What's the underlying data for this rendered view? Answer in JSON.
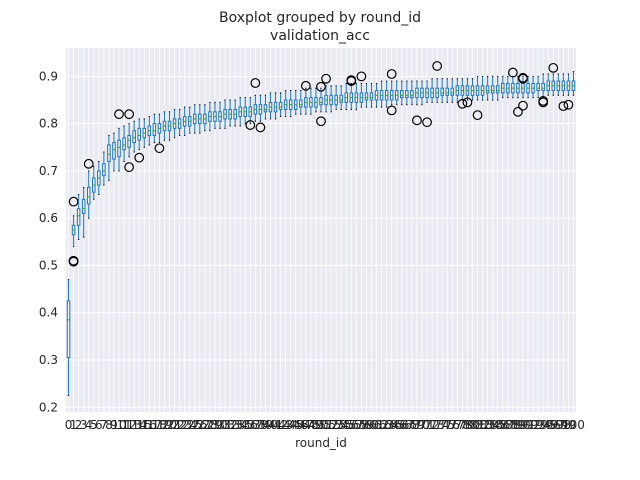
{
  "figure": {
    "title": "Boxplot grouped by round_id",
    "subtitle": "validation_acc"
  },
  "colors": {
    "plot_bg": "#eaeaf2",
    "grid": "#ffffff",
    "box": "#1f77b4",
    "median": "#2ca02c",
    "flier": "#000000",
    "whisker_cap": "#000000"
  },
  "chart_data": {
    "type": "boxplot",
    "title": "Boxplot grouped by round_id",
    "subtitle": "validation_acc",
    "xlabel": "round_id",
    "ylabel": "",
    "ylim": [
      0.19,
      0.96
    ],
    "yticks": [
      0.2,
      0.3,
      0.4,
      0.5,
      0.6,
      0.7,
      0.8,
      0.9
    ],
    "grid": true,
    "categories": [
      "0",
      "1",
      "2",
      "3",
      "4",
      "5",
      "6",
      "7",
      "8",
      "9",
      "10",
      "11",
      "12",
      "13",
      "14",
      "15",
      "16",
      "17",
      "18",
      "19",
      "20",
      "21",
      "22",
      "23",
      "24",
      "25",
      "26",
      "27",
      "28",
      "29",
      "30",
      "31",
      "32",
      "33",
      "34",
      "35",
      "36",
      "37",
      "38",
      "39",
      "40",
      "41",
      "42",
      "43",
      "44",
      "45",
      "46",
      "47",
      "48",
      "49",
      "50",
      "51",
      "52",
      "53",
      "54",
      "55",
      "56",
      "57",
      "58",
      "59",
      "60",
      "61",
      "62",
      "63",
      "64",
      "65",
      "66",
      "67",
      "68",
      "69",
      "70",
      "71",
      "72",
      "73",
      "74",
      "75",
      "76",
      "77",
      "78",
      "79",
      "80",
      "81",
      "82",
      "83",
      "84",
      "85",
      "86",
      "87",
      "88",
      "89",
      "90",
      "91",
      "92",
      "93",
      "94",
      "95",
      "96",
      "97",
      "98",
      "99",
      "100"
    ],
    "boxes": [
      {
        "x": "0",
        "wlo": 0.225,
        "q1": 0.305,
        "med": 0.385,
        "q3": 0.425,
        "whi": 0.47,
        "fliers": []
      },
      {
        "x": "1",
        "wlo": 0.54,
        "q1": 0.565,
        "med": 0.575,
        "q3": 0.585,
        "whi": 0.605,
        "fliers": [
          0.508,
          0.51,
          0.635
        ]
      },
      {
        "x": "2",
        "wlo": 0.555,
        "q1": 0.585,
        "med": 0.605,
        "q3": 0.62,
        "whi": 0.65,
        "fliers": []
      },
      {
        "x": "3",
        "wlo": 0.56,
        "q1": 0.61,
        "med": 0.62,
        "q3": 0.64,
        "whi": 0.665,
        "fliers": []
      },
      {
        "x": "4",
        "wlo": 0.6,
        "q1": 0.63,
        "med": 0.645,
        "q3": 0.665,
        "whi": 0.7,
        "fliers": [
          0.715
        ]
      },
      {
        "x": "5",
        "wlo": 0.64,
        "q1": 0.655,
        "med": 0.67,
        "q3": 0.685,
        "whi": 0.71,
        "fliers": []
      },
      {
        "x": "6",
        "wlo": 0.65,
        "q1": 0.67,
        "med": 0.685,
        "q3": 0.7,
        "whi": 0.72,
        "fliers": []
      },
      {
        "x": "7",
        "wlo": 0.67,
        "q1": 0.69,
        "med": 0.7,
        "q3": 0.715,
        "whi": 0.74,
        "fliers": []
      },
      {
        "x": "8",
        "wlo": 0.68,
        "q1": 0.72,
        "med": 0.735,
        "q3": 0.755,
        "whi": 0.775,
        "fliers": []
      },
      {
        "x": "9",
        "wlo": 0.7,
        "q1": 0.725,
        "med": 0.745,
        "q3": 0.76,
        "whi": 0.78,
        "fliers": []
      },
      {
        "x": "10",
        "wlo": 0.7,
        "q1": 0.73,
        "med": 0.75,
        "q3": 0.765,
        "whi": 0.79,
        "fliers": [
          0.82
        ]
      },
      {
        "x": "11",
        "wlo": 0.72,
        "q1": 0.745,
        "med": 0.755,
        "q3": 0.77,
        "whi": 0.795,
        "fliers": []
      },
      {
        "x": "12",
        "wlo": 0.73,
        "q1": 0.75,
        "med": 0.765,
        "q3": 0.775,
        "whi": 0.8,
        "fliers": [
          0.708,
          0.82
        ]
      },
      {
        "x": "13",
        "wlo": 0.74,
        "q1": 0.76,
        "med": 0.77,
        "q3": 0.785,
        "whi": 0.805,
        "fliers": []
      },
      {
        "x": "14",
        "wlo": 0.745,
        "q1": 0.765,
        "med": 0.775,
        "q3": 0.79,
        "whi": 0.81,
        "fliers": [
          0.728
        ]
      },
      {
        "x": "15",
        "wlo": 0.75,
        "q1": 0.77,
        "med": 0.78,
        "q3": 0.79,
        "whi": 0.81,
        "fliers": []
      },
      {
        "x": "16",
        "wlo": 0.755,
        "q1": 0.775,
        "med": 0.785,
        "q3": 0.795,
        "whi": 0.815,
        "fliers": []
      },
      {
        "x": "17",
        "wlo": 0.76,
        "q1": 0.775,
        "med": 0.785,
        "q3": 0.8,
        "whi": 0.82,
        "fliers": []
      },
      {
        "x": "18",
        "wlo": 0.76,
        "q1": 0.78,
        "med": 0.79,
        "q3": 0.8,
        "whi": 0.82,
        "fliers": [
          0.748
        ]
      },
      {
        "x": "19",
        "wlo": 0.765,
        "q1": 0.785,
        "med": 0.795,
        "q3": 0.805,
        "whi": 0.825,
        "fliers": []
      },
      {
        "x": "20",
        "wlo": 0.765,
        "q1": 0.785,
        "med": 0.795,
        "q3": 0.805,
        "whi": 0.825,
        "fliers": []
      },
      {
        "x": "21",
        "wlo": 0.77,
        "q1": 0.79,
        "med": 0.8,
        "q3": 0.81,
        "whi": 0.83,
        "fliers": []
      },
      {
        "x": "22",
        "wlo": 0.775,
        "q1": 0.79,
        "med": 0.8,
        "q3": 0.81,
        "whi": 0.83,
        "fliers": []
      },
      {
        "x": "23",
        "wlo": 0.775,
        "q1": 0.795,
        "med": 0.805,
        "q3": 0.815,
        "whi": 0.835,
        "fliers": []
      },
      {
        "x": "24",
        "wlo": 0.78,
        "q1": 0.795,
        "med": 0.805,
        "q3": 0.815,
        "whi": 0.835,
        "fliers": []
      },
      {
        "x": "25",
        "wlo": 0.78,
        "q1": 0.8,
        "med": 0.81,
        "q3": 0.82,
        "whi": 0.84,
        "fliers": []
      },
      {
        "x": "26",
        "wlo": 0.78,
        "q1": 0.8,
        "med": 0.81,
        "q3": 0.82,
        "whi": 0.84,
        "fliers": []
      },
      {
        "x": "27",
        "wlo": 0.785,
        "q1": 0.8,
        "med": 0.81,
        "q3": 0.82,
        "whi": 0.84,
        "fliers": []
      },
      {
        "x": "28",
        "wlo": 0.785,
        "q1": 0.805,
        "med": 0.815,
        "q3": 0.825,
        "whi": 0.845,
        "fliers": []
      },
      {
        "x": "29",
        "wlo": 0.79,
        "q1": 0.805,
        "med": 0.815,
        "q3": 0.825,
        "whi": 0.845,
        "fliers": []
      },
      {
        "x": "30",
        "wlo": 0.79,
        "q1": 0.805,
        "med": 0.815,
        "q3": 0.825,
        "whi": 0.845,
        "fliers": []
      },
      {
        "x": "31",
        "wlo": 0.79,
        "q1": 0.81,
        "med": 0.82,
        "q3": 0.83,
        "whi": 0.85,
        "fliers": []
      },
      {
        "x": "32",
        "wlo": 0.795,
        "q1": 0.81,
        "med": 0.82,
        "q3": 0.83,
        "whi": 0.85,
        "fliers": []
      },
      {
        "x": "33",
        "wlo": 0.795,
        "q1": 0.81,
        "med": 0.82,
        "q3": 0.83,
        "whi": 0.85,
        "fliers": []
      },
      {
        "x": "34",
        "wlo": 0.795,
        "q1": 0.815,
        "med": 0.825,
        "q3": 0.835,
        "whi": 0.855,
        "fliers": []
      },
      {
        "x": "35",
        "wlo": 0.8,
        "q1": 0.815,
        "med": 0.825,
        "q3": 0.835,
        "whi": 0.855,
        "fliers": []
      },
      {
        "x": "36",
        "wlo": 0.8,
        "q1": 0.815,
        "med": 0.825,
        "q3": 0.835,
        "whi": 0.855,
        "fliers": [
          0.797
        ]
      },
      {
        "x": "37",
        "wlo": 0.805,
        "q1": 0.82,
        "med": 0.83,
        "q3": 0.84,
        "whi": 0.86,
        "fliers": [
          0.886
        ]
      },
      {
        "x": "38",
        "wlo": 0.805,
        "q1": 0.82,
        "med": 0.83,
        "q3": 0.84,
        "whi": 0.86,
        "fliers": [
          0.792
        ]
      },
      {
        "x": "39",
        "wlo": 0.81,
        "q1": 0.825,
        "med": 0.83,
        "q3": 0.84,
        "whi": 0.86,
        "fliers": []
      },
      {
        "x": "40",
        "wlo": 0.81,
        "q1": 0.825,
        "med": 0.835,
        "q3": 0.845,
        "whi": 0.865,
        "fliers": []
      },
      {
        "x": "41",
        "wlo": 0.81,
        "q1": 0.825,
        "med": 0.835,
        "q3": 0.845,
        "whi": 0.865,
        "fliers": []
      },
      {
        "x": "42",
        "wlo": 0.815,
        "q1": 0.83,
        "med": 0.835,
        "q3": 0.845,
        "whi": 0.865,
        "fliers": []
      },
      {
        "x": "43",
        "wlo": 0.815,
        "q1": 0.83,
        "med": 0.84,
        "q3": 0.85,
        "whi": 0.87,
        "fliers": []
      },
      {
        "x": "44",
        "wlo": 0.815,
        "q1": 0.83,
        "med": 0.84,
        "q3": 0.85,
        "whi": 0.87,
        "fliers": []
      },
      {
        "x": "45",
        "wlo": 0.82,
        "q1": 0.83,
        "med": 0.84,
        "q3": 0.85,
        "whi": 0.87,
        "fliers": []
      },
      {
        "x": "46",
        "wlo": 0.82,
        "q1": 0.835,
        "med": 0.84,
        "q3": 0.85,
        "whi": 0.87,
        "fliers": []
      },
      {
        "x": "47",
        "wlo": 0.82,
        "q1": 0.835,
        "med": 0.845,
        "q3": 0.855,
        "whi": 0.875,
        "fliers": [
          0.88
        ]
      },
      {
        "x": "48",
        "wlo": 0.82,
        "q1": 0.835,
        "med": 0.845,
        "q3": 0.855,
        "whi": 0.875,
        "fliers": []
      },
      {
        "x": "49",
        "wlo": 0.825,
        "q1": 0.835,
        "med": 0.845,
        "q3": 0.855,
        "whi": 0.875,
        "fliers": []
      },
      {
        "x": "50",
        "wlo": 0.825,
        "q1": 0.84,
        "med": 0.845,
        "q3": 0.855,
        "whi": 0.875,
        "fliers": [
          0.805,
          0.878
        ]
      },
      {
        "x": "51",
        "wlo": 0.825,
        "q1": 0.84,
        "med": 0.85,
        "q3": 0.86,
        "whi": 0.88,
        "fliers": [
          0.895
        ]
      },
      {
        "x": "52",
        "wlo": 0.825,
        "q1": 0.84,
        "med": 0.85,
        "q3": 0.86,
        "whi": 0.88,
        "fliers": []
      },
      {
        "x": "53",
        "wlo": 0.83,
        "q1": 0.84,
        "med": 0.85,
        "q3": 0.86,
        "whi": 0.88,
        "fliers": []
      },
      {
        "x": "54",
        "wlo": 0.83,
        "q1": 0.845,
        "med": 0.85,
        "q3": 0.86,
        "whi": 0.88,
        "fliers": []
      },
      {
        "x": "55",
        "wlo": 0.83,
        "q1": 0.845,
        "med": 0.855,
        "q3": 0.865,
        "whi": 0.885,
        "fliers": []
      },
      {
        "x": "56",
        "wlo": 0.83,
        "q1": 0.845,
        "med": 0.855,
        "q3": 0.865,
        "whi": 0.885,
        "fliers": [
          0.89,
          0.892
        ]
      },
      {
        "x": "57",
        "wlo": 0.83,
        "q1": 0.845,
        "med": 0.855,
        "q3": 0.865,
        "whi": 0.885,
        "fliers": []
      },
      {
        "x": "58",
        "wlo": 0.835,
        "q1": 0.845,
        "med": 0.855,
        "q3": 0.865,
        "whi": 0.885,
        "fliers": [
          0.9
        ]
      },
      {
        "x": "59",
        "wlo": 0.835,
        "q1": 0.85,
        "med": 0.855,
        "q3": 0.865,
        "whi": 0.885,
        "fliers": []
      },
      {
        "x": "60",
        "wlo": 0.835,
        "q1": 0.85,
        "med": 0.855,
        "q3": 0.865,
        "whi": 0.885,
        "fliers": []
      },
      {
        "x": "61",
        "wlo": 0.835,
        "q1": 0.85,
        "med": 0.86,
        "q3": 0.87,
        "whi": 0.885,
        "fliers": []
      },
      {
        "x": "62",
        "wlo": 0.835,
        "q1": 0.85,
        "med": 0.86,
        "q3": 0.87,
        "whi": 0.89,
        "fliers": []
      },
      {
        "x": "63",
        "wlo": 0.835,
        "q1": 0.85,
        "med": 0.86,
        "q3": 0.87,
        "whi": 0.89,
        "fliers": []
      },
      {
        "x": "64",
        "wlo": 0.84,
        "q1": 0.85,
        "med": 0.86,
        "q3": 0.87,
        "whi": 0.89,
        "fliers": [
          0.905,
          0.828
        ]
      },
      {
        "x": "65",
        "wlo": 0.84,
        "q1": 0.85,
        "med": 0.86,
        "q3": 0.87,
        "whi": 0.89,
        "fliers": []
      },
      {
        "x": "66",
        "wlo": 0.84,
        "q1": 0.855,
        "med": 0.86,
        "q3": 0.87,
        "whi": 0.89,
        "fliers": []
      },
      {
        "x": "67",
        "wlo": 0.84,
        "q1": 0.855,
        "med": 0.86,
        "q3": 0.87,
        "whi": 0.89,
        "fliers": []
      },
      {
        "x": "68",
        "wlo": 0.84,
        "q1": 0.855,
        "med": 0.86,
        "q3": 0.87,
        "whi": 0.89,
        "fliers": []
      },
      {
        "x": "69",
        "wlo": 0.84,
        "q1": 0.855,
        "med": 0.865,
        "q3": 0.875,
        "whi": 0.89,
        "fliers": [
          0.807
        ]
      },
      {
        "x": "70",
        "wlo": 0.84,
        "q1": 0.855,
        "med": 0.865,
        "q3": 0.875,
        "whi": 0.89,
        "fliers": []
      },
      {
        "x": "71",
        "wlo": 0.845,
        "q1": 0.855,
        "med": 0.865,
        "q3": 0.875,
        "whi": 0.89,
        "fliers": [
          0.803
        ]
      },
      {
        "x": "72",
        "wlo": 0.845,
        "q1": 0.855,
        "med": 0.865,
        "q3": 0.875,
        "whi": 0.895,
        "fliers": []
      },
      {
        "x": "73",
        "wlo": 0.845,
        "q1": 0.855,
        "med": 0.865,
        "q3": 0.875,
        "whi": 0.895,
        "fliers": [
          0.922
        ]
      },
      {
        "x": "74",
        "wlo": 0.845,
        "q1": 0.86,
        "med": 0.865,
        "q3": 0.875,
        "whi": 0.895,
        "fliers": []
      },
      {
        "x": "75",
        "wlo": 0.845,
        "q1": 0.86,
        "med": 0.865,
        "q3": 0.875,
        "whi": 0.895,
        "fliers": []
      },
      {
        "x": "76",
        "wlo": 0.845,
        "q1": 0.86,
        "med": 0.865,
        "q3": 0.875,
        "whi": 0.895,
        "fliers": []
      },
      {
        "x": "77",
        "wlo": 0.845,
        "q1": 0.86,
        "med": 0.87,
        "q3": 0.88,
        "whi": 0.895,
        "fliers": []
      },
      {
        "x": "78",
        "wlo": 0.85,
        "q1": 0.86,
        "med": 0.87,
        "q3": 0.88,
        "whi": 0.895,
        "fliers": [
          0.842
        ]
      },
      {
        "x": "79",
        "wlo": 0.85,
        "q1": 0.86,
        "med": 0.87,
        "q3": 0.88,
        "whi": 0.895,
        "fliers": [
          0.845
        ]
      },
      {
        "x": "80",
        "wlo": 0.85,
        "q1": 0.86,
        "med": 0.87,
        "q3": 0.88,
        "whi": 0.895,
        "fliers": []
      },
      {
        "x": "81",
        "wlo": 0.85,
        "q1": 0.86,
        "med": 0.87,
        "q3": 0.88,
        "whi": 0.9,
        "fliers": [
          0.818
        ]
      },
      {
        "x": "82",
        "wlo": 0.85,
        "q1": 0.86,
        "med": 0.87,
        "q3": 0.88,
        "whi": 0.9,
        "fliers": []
      },
      {
        "x": "83",
        "wlo": 0.85,
        "q1": 0.865,
        "med": 0.87,
        "q3": 0.88,
        "whi": 0.9,
        "fliers": []
      },
      {
        "x": "84",
        "wlo": 0.85,
        "q1": 0.865,
        "med": 0.87,
        "q3": 0.88,
        "whi": 0.9,
        "fliers": []
      },
      {
        "x": "85",
        "wlo": 0.85,
        "q1": 0.865,
        "med": 0.87,
        "q3": 0.88,
        "whi": 0.9,
        "fliers": []
      },
      {
        "x": "86",
        "wlo": 0.855,
        "q1": 0.865,
        "med": 0.875,
        "q3": 0.885,
        "whi": 0.9,
        "fliers": []
      },
      {
        "x": "87",
        "wlo": 0.855,
        "q1": 0.865,
        "med": 0.875,
        "q3": 0.885,
        "whi": 0.9,
        "fliers": []
      },
      {
        "x": "88",
        "wlo": 0.855,
        "q1": 0.865,
        "med": 0.875,
        "q3": 0.885,
        "whi": 0.9,
        "fliers": [
          0.908
        ]
      },
      {
        "x": "89",
        "wlo": 0.855,
        "q1": 0.865,
        "med": 0.875,
        "q3": 0.885,
        "whi": 0.9,
        "fliers": [
          0.825
        ]
      },
      {
        "x": "90",
        "wlo": 0.855,
        "q1": 0.865,
        "med": 0.875,
        "q3": 0.885,
        "whi": 0.9,
        "fliers": [
          0.897,
          0.838,
          0.895
        ]
      },
      {
        "x": "91",
        "wlo": 0.855,
        "q1": 0.865,
        "med": 0.875,
        "q3": 0.885,
        "whi": 0.9,
        "fliers": []
      },
      {
        "x": "92",
        "wlo": 0.855,
        "q1": 0.865,
        "med": 0.875,
        "q3": 0.885,
        "whi": 0.9,
        "fliers": []
      },
      {
        "x": "93",
        "wlo": 0.855,
        "q1": 0.87,
        "med": 0.875,
        "q3": 0.885,
        "whi": 0.9,
        "fliers": []
      },
      {
        "x": "94",
        "wlo": 0.855,
        "q1": 0.87,
        "med": 0.875,
        "q3": 0.885,
        "whi": 0.905,
        "fliers": [
          0.848,
          0.845
        ]
      },
      {
        "x": "95",
        "wlo": 0.86,
        "q1": 0.87,
        "med": 0.88,
        "q3": 0.89,
        "whi": 0.905,
        "fliers": []
      },
      {
        "x": "96",
        "wlo": 0.86,
        "q1": 0.87,
        "med": 0.88,
        "q3": 0.89,
        "whi": 0.905,
        "fliers": [
          0.918
        ]
      },
      {
        "x": "97",
        "wlo": 0.86,
        "q1": 0.87,
        "med": 0.88,
        "q3": 0.89,
        "whi": 0.905,
        "fliers": []
      },
      {
        "x": "98",
        "wlo": 0.86,
        "q1": 0.87,
        "med": 0.88,
        "q3": 0.89,
        "whi": 0.905,
        "fliers": [
          0.837
        ]
      },
      {
        "x": "99",
        "wlo": 0.86,
        "q1": 0.87,
        "med": 0.88,
        "q3": 0.89,
        "whi": 0.905,
        "fliers": [
          0.84
        ]
      },
      {
        "x": "100",
        "wlo": 0.86,
        "q1": 0.87,
        "med": 0.88,
        "q3": 0.89,
        "whi": 0.91,
        "fliers": []
      }
    ]
  }
}
